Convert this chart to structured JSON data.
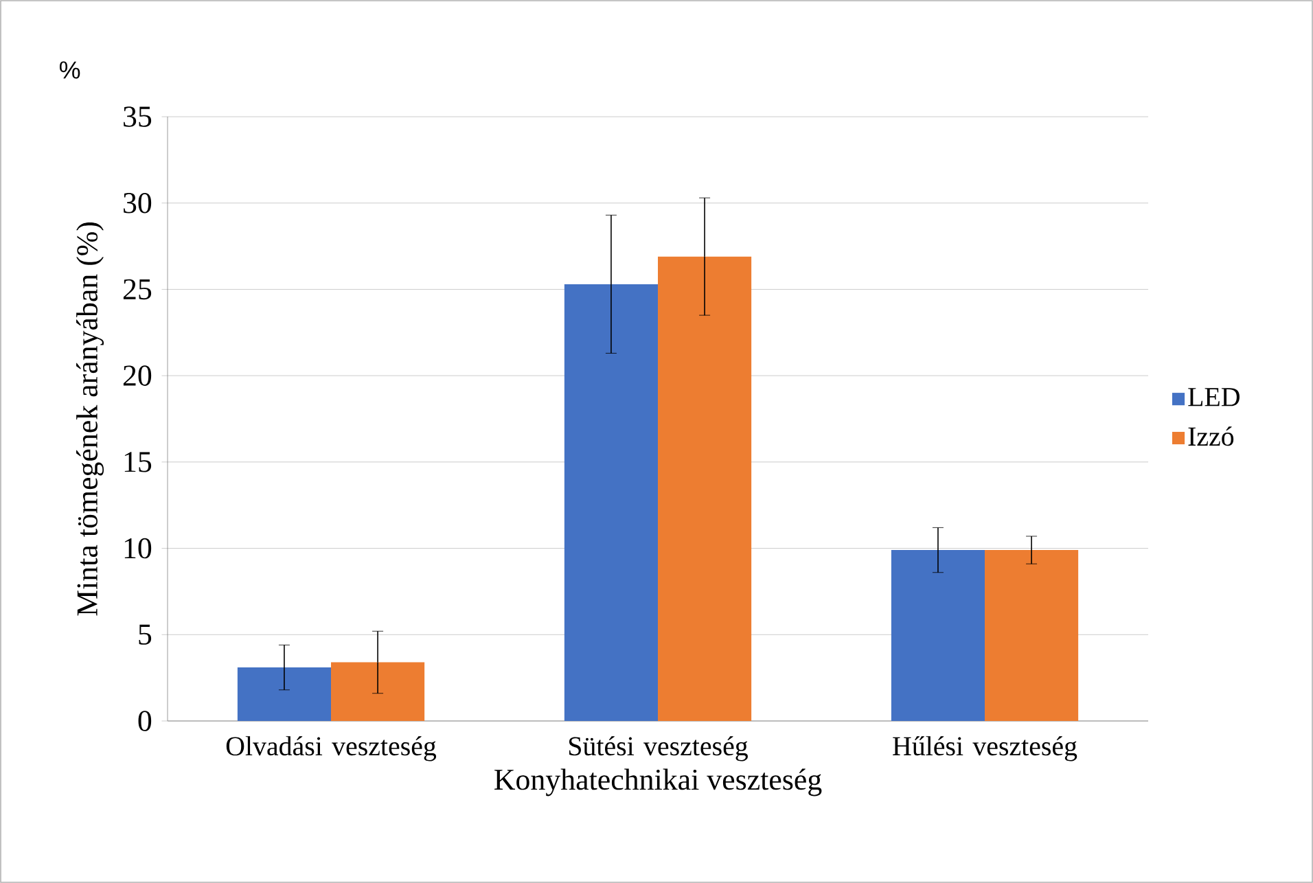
{
  "chart_data": {
    "type": "bar",
    "ylabel": "Minta tömegének arányában (%)",
    "xlabel": "Konyhatechnikai veszteség",
    "annotations": [
      "%"
    ],
    "categories": [
      "Olvadási veszteség",
      "Sütési veszteség",
      "Hűlési veszteség"
    ],
    "series": [
      {
        "name": "LED",
        "color": "#4472c4",
        "values": [
          3.1,
          25.3,
          9.9
        ],
        "errors": [
          1.3,
          4.0,
          1.3
        ]
      },
      {
        "name": "Izzó",
        "color": "#ed7d31",
        "values": [
          3.4,
          26.9,
          9.9
        ],
        "errors": [
          1.8,
          3.4,
          0.8
        ]
      }
    ],
    "ylim": [
      0,
      35
    ],
    "yticks": [
      0,
      5,
      10,
      15,
      20,
      25,
      30,
      35
    ],
    "grid": "y",
    "legend": "right"
  }
}
